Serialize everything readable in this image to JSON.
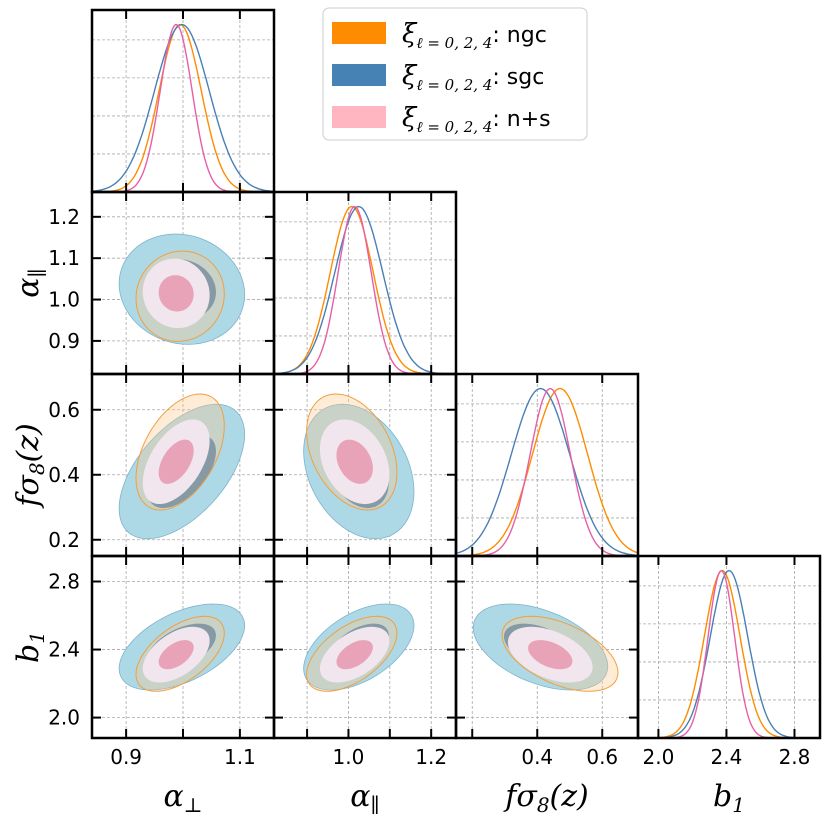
{
  "chart_data": {
    "type": "triangle",
    "parameters": [
      {
        "key": "aperp",
        "label": "α",
        "label_sub": "⊥",
        "ticks": [
          0.9,
          1.0,
          1.1
        ],
        "tick_labels": [
          "0.9",
          "",
          "1.1"
        ],
        "range": [
          0.84,
          1.16
        ]
      },
      {
        "key": "apar",
        "label": "α",
        "label_sub": "∥",
        "ticks": [
          0.9,
          1.0,
          1.1,
          1.2
        ],
        "tick_labels": [
          "0.9",
          "1.0",
          "1.1",
          "1.2"
        ],
        "range": [
          0.82,
          1.26
        ]
      },
      {
        "key": "fs8",
        "label": "fσ",
        "label_sub": "8",
        "label_tail": "(z)",
        "ticks": [
          0.2,
          0.4,
          0.6
        ],
        "tick_labels": [
          "0.2",
          "0.4",
          "0.6"
        ],
        "range": [
          0.15,
          0.71
        ]
      },
      {
        "key": "b1",
        "label": "b",
        "label_sub": "1",
        "ticks": [
          2.0,
          2.4,
          2.8
        ],
        "tick_labels": [
          "2.0",
          "2.4",
          "2.8"
        ],
        "range": [
          1.88,
          2.95
        ]
      }
    ],
    "x_tick_labels": [
      [
        "0.9",
        "1.1"
      ],
      [
        "1.0",
        "1.2"
      ],
      [
        "0.4",
        "0.6"
      ],
      [
        "2.0",
        "2.4",
        "2.8"
      ]
    ],
    "legend": {
      "prefix": "ξ",
      "subscript": "ℓ = 0, 2, 4",
      "placement": "top-center",
      "entries": [
        {
          "label": ": ngc",
          "color": "#ff8c00",
          "name": "ngc"
        },
        {
          "label": ": sgc",
          "color": "#4682b4",
          "name": "sgc"
        },
        {
          "label": ": n+s",
          "color": "#ffb6c1",
          "name": "n+s"
        }
      ]
    },
    "series": [
      {
        "name": "ngc",
        "color": "#ff8c00",
        "line_color": "#ff8c00",
        "mean": [
          0.995,
          1.008,
          0.47,
          2.375
        ],
        "sigma": [
          0.037,
          0.052,
          0.085,
          0.105
        ],
        "corr": {
          "aperp_apar": 0.05,
          "aperp_fs8": 0.45,
          "aperp_b1": 0.55,
          "apar_fs8": -0.35,
          "apar_b1": 0.55,
          "fs8_b1": -0.5
        },
        "style": "line-2sigma"
      },
      {
        "name": "sgc",
        "color": "#4682b4",
        "line_color": "#4a7fb5",
        "mean": [
          0.998,
          1.025,
          0.41,
          2.415
        ],
        "sigma": [
          0.048,
          0.058,
          0.09,
          0.11
        ],
        "corr": {
          "aperp_apar": -0.1,
          "aperp_fs8": 0.55,
          "aperp_b1": 0.5,
          "apar_fs8": -0.3,
          "apar_b1": 0.5,
          "fs8_b1": -0.45
        },
        "style": "filled"
      },
      {
        "name": "n+s",
        "color": "#ffb6c1",
        "line_color": "#e75fa6",
        "mean": [
          0.988,
          1.015,
          0.44,
          2.37
        ],
        "sigma": [
          0.028,
          0.04,
          0.062,
          0.078
        ],
        "corr": {
          "aperp_apar": -0.05,
          "aperp_fs8": 0.5,
          "aperp_b1": 0.5,
          "apar_fs8": -0.3,
          "apar_b1": 0.5,
          "fs8_b1": -0.45
        },
        "style": "filled"
      }
    ]
  },
  "colors": {
    "sgc_2sigma_fill": "#add8e6",
    "sgc_1sigma_fill": "#4682b4",
    "ns_2sigma_fill": "#f2e6ee",
    "ns_1sigma_fill": "#e8a3b8",
    "grid": "#a8a8a8"
  }
}
